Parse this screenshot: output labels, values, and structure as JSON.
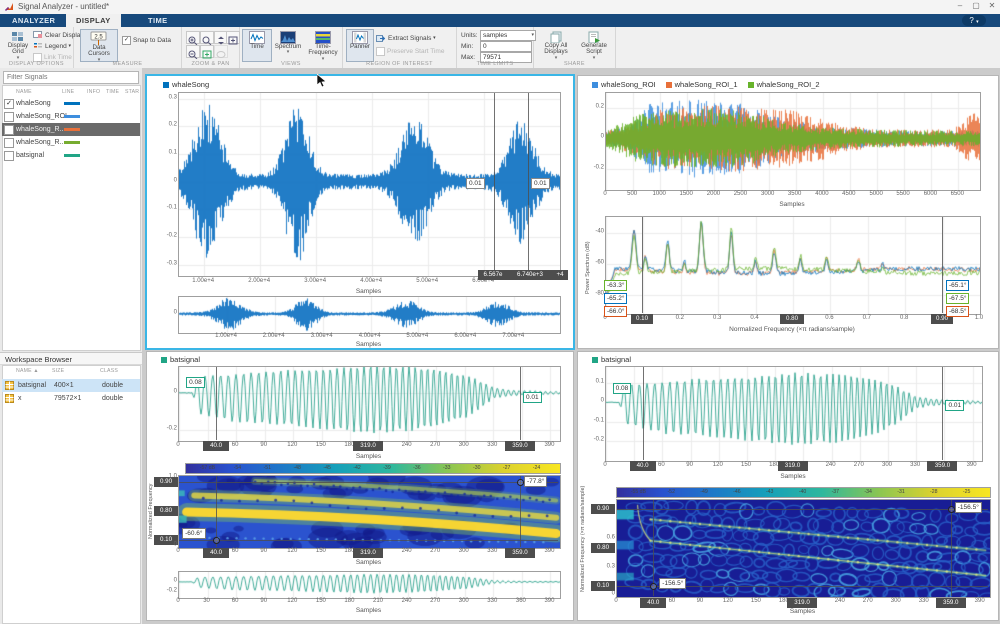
{
  "window": {
    "title": "Signal Analyzer - untitled*",
    "controls": {
      "minimize": "–",
      "maximize": "▢",
      "close": "✕"
    }
  },
  "icons": {
    "help": "?",
    "caret": "▾",
    "check": "✓",
    "sort_asc": "▲"
  },
  "tabs": {
    "items": [
      {
        "label": "ANALYZER"
      },
      {
        "label": "DISPLAY"
      },
      {
        "label": "TIME"
      }
    ]
  },
  "ribbon": {
    "display_options": {
      "label": "DISPLAY OPTIONS",
      "display_grid": "Display Grid",
      "clear_display": "Clear Display",
      "legend": "Legend",
      "link_time": "Link Time"
    },
    "measure": {
      "label": "MEASURE",
      "data_cursors": "Data Cursors",
      "snap_to_data": "Snap to Data",
      "cursor_icon_text": "2.5"
    },
    "zoom_pan": {
      "label": "ZOOM & PAN"
    },
    "views": {
      "label": "VIEWS",
      "time": "Time",
      "spectrum": "Spectrum",
      "time_frequency": "Time-Frequency"
    },
    "roi": {
      "label": "REGION OF INTEREST",
      "panner": "Panner",
      "extract_signals": "Extract Signals",
      "preserve_start_time": "Preserve Start Time"
    },
    "time_limits": {
      "label": "TIME LIMITS",
      "units_label": "Units:",
      "units_value": "samples",
      "min_label": "Min:",
      "min_value": "0",
      "max_label": "Max:",
      "max_value": "79571"
    },
    "share": {
      "label": "SHARE",
      "copy_all": "Copy All Displays",
      "generate_script": "Generate Script"
    }
  },
  "sidebar": {
    "filter_placeholder": "Filter Signals",
    "columns": [
      "NAME",
      "LINE",
      "INFO",
      "TIME",
      "STAR"
    ],
    "signals": [
      {
        "name": "whaleSong",
        "checked": true,
        "color": "#0072BD",
        "selected": false
      },
      {
        "name": "whaleSong_ROI",
        "checked": false,
        "color": "#3E8EDE",
        "selected": false
      },
      {
        "name": "whaleSong_R...",
        "checked": false,
        "color": "#E8703A",
        "selected": true
      },
      {
        "name": "whaleSong_R...",
        "checked": false,
        "color": "#77AC30",
        "selected": false
      },
      {
        "name": "batsignal",
        "checked": false,
        "color": "#21A586",
        "selected": false
      }
    ]
  },
  "workspace": {
    "title": "Workspace Browser",
    "columns": [
      "NAME",
      "SIZE",
      "CLASS"
    ],
    "rows": [
      {
        "name": "batsignal",
        "size": "400×1",
        "class": "double",
        "selected": true
      },
      {
        "name": "x",
        "size": "79572×1",
        "class": "double",
        "selected": false
      }
    ]
  },
  "displays": {
    "d1": {
      "legend": [
        {
          "label": "whaleSong",
          "color": "#0072BD"
        }
      ],
      "main": {
        "xlabel": "Samples",
        "xticks": [
          "1.00e+4",
          "2.00e+4",
          "3.00e+4",
          "4.00e+4",
          "5.00e+4",
          "6.00e+4"
        ],
        "yticks": [
          "0.3",
          "0.2",
          "0.1",
          "0",
          "-0.1",
          "-0.2",
          "-0.3"
        ],
        "cursor_values": [
          "0.01",
          "0.01"
        ],
        "readout": [
          "6.567e",
          "6.740e+3",
          "+4"
        ]
      },
      "panner": {
        "xlabel": "Samples",
        "xticks": [
          "1.00e+4",
          "2.00e+4",
          "3.00e+4",
          "4.00e+4",
          "5.00e+4",
          "6.00e+4",
          "7.00e+4"
        ],
        "yticks": [
          "0"
        ]
      }
    },
    "d2": {
      "legend": [
        {
          "label": "whaleSong_ROI",
          "color": "#3E8EDE"
        },
        {
          "label": "whaleSong_ROI_1",
          "color": "#E8703A"
        },
        {
          "label": "whaleSong_ROI_2",
          "color": "#67B32B"
        }
      ],
      "time": {
        "xlabel": "Samples",
        "xticks": [
          "0",
          "500",
          "1000",
          "1500",
          "2000",
          "2500",
          "3000",
          "3500",
          "4000",
          "4500",
          "5000",
          "5500",
          "6000",
          "6500"
        ],
        "yticks": [
          "0.2",
          "0",
          "-0.2"
        ]
      },
      "spectrum": {
        "xlabel": "Normalized Frequency (×π radians/sample)",
        "ylabel": "Power Spectrum (dB)",
        "xticks": [
          "0",
          "0.2",
          "0.3",
          "0.4",
          "0.6",
          "0.7",
          "0.8",
          "1.0"
        ],
        "yticks": [
          "-40",
          "-60",
          "-80"
        ],
        "cursor_readouts": [
          "0.10",
          "0.80",
          "0.90"
        ],
        "left_values": [
          {
            "text": "-63.3°",
            "color": "#67B32B"
          },
          {
            "text": "-65.2°",
            "color": "#0072BD"
          },
          {
            "text": "-66.0°",
            "color": "#D95319"
          }
        ],
        "right_values": [
          {
            "text": "-65.1°",
            "color": "#0072BD"
          },
          {
            "text": "-67.5°",
            "color": "#67B32B"
          },
          {
            "text": "-68.5°",
            "color": "#D95319"
          }
        ]
      }
    },
    "d3": {
      "legend": [
        {
          "label": "batsignal",
          "color": "#21A586"
        }
      ],
      "time": {
        "xlabel": "Samples",
        "xticks": [
          "0",
          "60",
          "90",
          "120",
          "150",
          "180",
          "240",
          "270",
          "300",
          "330",
          "390"
        ],
        "yticks": [
          "0",
          "-0.2"
        ],
        "cursor_values": [
          "0.08",
          "0.01"
        ],
        "cursor_readouts": [
          "40.0",
          "319.0",
          "359.0"
        ]
      },
      "colorbar": [
        "-57 dB",
        "-54",
        "-51",
        "-48",
        "-45",
        "-42",
        "-39",
        "-36",
        "-33",
        "-30",
        "-27",
        "-24"
      ],
      "spectrogram": {
        "xlabel": "Samples",
        "ylabel": "Normalized Frequency",
        "xticks": [
          "0",
          "60",
          "90",
          "120",
          "150",
          "180",
          "240",
          "270",
          "300",
          "330",
          "390"
        ],
        "yticks": [
          "1.0",
          "0"
        ],
        "y_readouts": [
          "0.90",
          "0.80",
          "0.10"
        ],
        "x_readouts": [
          "40.0",
          "319.0",
          "359.0"
        ],
        "values": [
          "-77.8°",
          "-60.6°"
        ]
      },
      "panner": {
        "xlabel": "Samples",
        "xticks": [
          "0",
          "30",
          "60",
          "90",
          "120",
          "150",
          "180",
          "210",
          "240",
          "270",
          "300",
          "330",
          "360",
          "390"
        ],
        "yticks": [
          "0",
          "-0.2"
        ]
      }
    },
    "d4": {
      "legend": [
        {
          "label": "batsignal",
          "color": "#21A586"
        }
      ],
      "time": {
        "xlabel": "Samples",
        "xticks": [
          "0",
          "60",
          "90",
          "120",
          "150",
          "180",
          "240",
          "270",
          "300",
          "330",
          "390"
        ],
        "yticks": [
          "0.1",
          "0",
          "-0.1",
          "-0.2"
        ],
        "cursor_values": [
          "0.08",
          "0.01"
        ],
        "cursor_readouts": [
          "40.0",
          "319.0",
          "359.0"
        ]
      },
      "colorbar": [
        "-55 dB",
        "-52",
        "-49",
        "-46",
        "-43",
        "-40",
        "-37",
        "-34",
        "-31",
        "-28",
        "-25"
      ],
      "spectrogram": {
        "xlabel": "Samples",
        "ylabel": "Normalized Frequency (×π radians/sample)",
        "xticks": [
          "0",
          "60",
          "90",
          "120",
          "150",
          "180",
          "240",
          "270",
          "300",
          "330",
          "390"
        ],
        "yticks": [
          "0.6",
          "0.3",
          "0"
        ],
        "y_readouts": [
          "0.90",
          "0.80",
          "0.10"
        ],
        "x_readouts": [
          "40.0",
          "319.0",
          "359.0"
        ],
        "values": [
          "-156.5°",
          "-156.5°"
        ]
      }
    }
  }
}
